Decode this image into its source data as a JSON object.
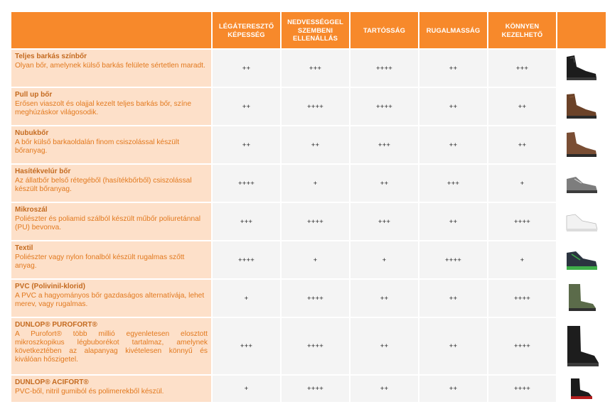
{
  "columns": [
    {
      "label": "LÉGÁTERESZTŐ KÉPESSÉG"
    },
    {
      "label": "NEDVESSÉGGEL SZEMBENI ELLENÁLLÁS"
    },
    {
      "label": "TARTÓSSÁG"
    },
    {
      "label": "RUGALMASSÁG"
    },
    {
      "label": "KÖNNYEN KEZELHETŐ"
    }
  ],
  "rows": [
    {
      "name": "Teljes barkás színbőr",
      "desc": "Olyan bőr, amelynek külső barkás felülete sértetlen maradt.",
      "values": [
        "++",
        "+++",
        "++++",
        "++",
        "+++"
      ],
      "icon": "black-leather-boot-icon"
    },
    {
      "name": "Pull up bőr",
      "desc": "Erősen viaszolt és olajjal kezelt teljes barkás bőr, színe meghúzáskor világosodik.",
      "values": [
        "++",
        "++++",
        "++++",
        "++",
        "++"
      ],
      "icon": "brown-leather-boot-icon"
    },
    {
      "name": "Nubukbőr",
      "desc": "A bőr külső barkaoldalán finom csiszolással készült bőranyag.",
      "values": [
        "++",
        "++",
        "+++",
        "++",
        "++"
      ],
      "icon": "brown-nubuck-boot-icon"
    },
    {
      "name": "Hasítékvelúr bőr",
      "desc": "Az állatbőr belső rétegéből (hasítékbőrből) csiszolással készült bőranyag.",
      "values": [
        "++++",
        "+",
        "++",
        "+++",
        "+"
      ],
      "icon": "grey-suede-shoe-icon"
    },
    {
      "name": "Mikroszál",
      "desc": "Poliészter és poliamid szálból készült műbőr poliuretánnal (PU) bevonva.",
      "values": [
        "+++",
        "++++",
        "+++",
        "++",
        "++++"
      ],
      "icon": "white-microfiber-shoe-icon"
    },
    {
      "name": "Textil",
      "desc": "Poliészter vagy nylon fonalból készült rugalmas szőtt anyag.",
      "values": [
        "++++",
        "+",
        "+",
        "++++",
        "+"
      ],
      "icon": "textile-sneaker-icon"
    },
    {
      "name": "PVC (Polivinil-klorid)",
      "desc": "A PVC a hagyományos bőr gazdaságos alternatívája, lehet merev, vagy rugalmas.",
      "values": [
        "+",
        "++++",
        "++",
        "++",
        "++++"
      ],
      "icon": "green-pvc-boot-icon"
    },
    {
      "name": "DUNLOP® PUROFORT®",
      "desc": "A Purofort® több millió egyenletesen elosztott mikroszkopikus légbuborékot tartalmaz, amelynek következtében az alapanyag kivételesen könnyű és kiválóan hőszigetel.",
      "values": [
        "+++",
        "++++",
        "++",
        "++",
        "++++"
      ],
      "icon": "black-purofort-boot-icon"
    },
    {
      "name": "DUNLOP® ACIFORT®",
      "desc": "PVC-ből, nitril gumiból és polimerekből készül.",
      "values": [
        "+",
        "++++",
        "++",
        "++",
        "++++"
      ],
      "icon": "black-acifort-boot-icon"
    }
  ],
  "colors": {
    "header_bg": "#f7892b",
    "label_bg": "#fde0c9",
    "cell_bg": "#f4f4f4",
    "name_text": "#c46a1f",
    "desc_text": "#e2791e"
  }
}
